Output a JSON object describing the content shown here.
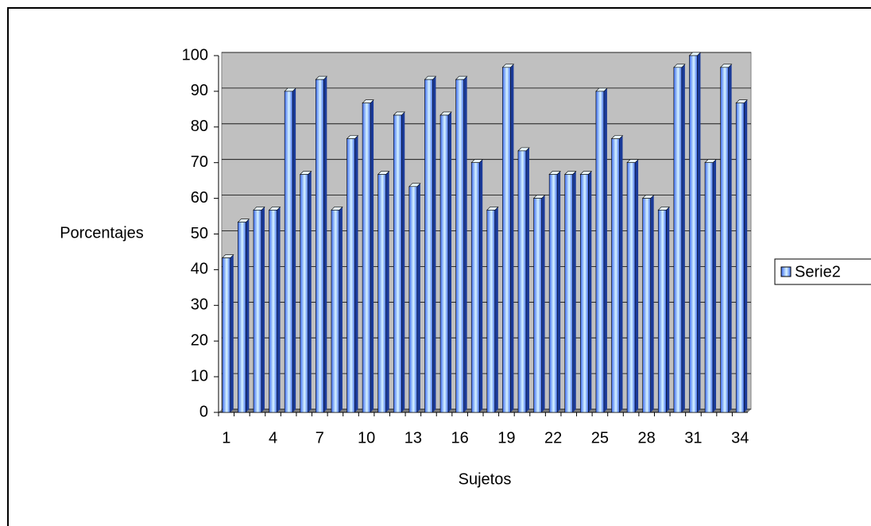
{
  "chart_data": {
    "type": "bar",
    "x_label": "Sujetos",
    "y_label": "Porcentajes",
    "categories": [
      1,
      null,
      null,
      4,
      null,
      null,
      7,
      null,
      null,
      10,
      null,
      null,
      13,
      null,
      null,
      16,
      null,
      null,
      19,
      null,
      null,
      22,
      null,
      null,
      25,
      null,
      null,
      28,
      null,
      null,
      31,
      null,
      null,
      34
    ],
    "series": [
      {
        "name": "Serie2",
        "color": "#3d6cf0",
        "values": [
          43.3,
          53.3,
          56.7,
          56.7,
          90,
          66.7,
          93.3,
          56.7,
          76.7,
          86.7,
          66.7,
          83.3,
          63.3,
          93.3,
          83.3,
          93.3,
          70,
          56.7,
          96.7,
          73.3,
          60,
          66.7,
          66.7,
          66.7,
          90,
          76.7,
          70,
          60,
          56.7,
          96.7,
          100,
          70,
          96.7,
          86.7
        ]
      }
    ],
    "ylim": [
      0,
      100
    ],
    "yticks": [
      0,
      10,
      20,
      30,
      40,
      50,
      60,
      70,
      80,
      90,
      100
    ],
    "grid": true,
    "legend": "right"
  }
}
